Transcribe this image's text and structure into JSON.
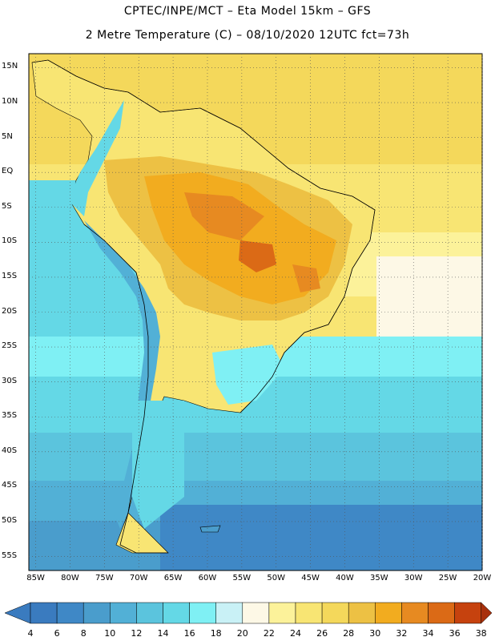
{
  "header": {
    "line1": "CPTEC/INPE/MCT –   Eta Model 15km – GFS",
    "line2": "2 Metre Temperature (C) – 08/10/2020 12UTC fct=73h"
  },
  "map": {
    "lat_labels": [
      "15N",
      "10N",
      "5N",
      "EQ",
      "5S",
      "10S",
      "15S",
      "20S",
      "25S",
      "30S",
      "35S",
      "40S",
      "45S",
      "50S",
      "55S"
    ],
    "lon_labels": [
      "85W",
      "80W",
      "75W",
      "70W",
      "65W",
      "60W",
      "55W",
      "50W",
      "45W",
      "40W",
      "35W",
      "30W",
      "25W",
      "20W"
    ],
    "grid": "dotted",
    "lat_range": [
      -57,
      17
    ],
    "lon_range": [
      -86,
      -20
    ]
  },
  "colorbar": {
    "labels": [
      "4",
      "6",
      "8",
      "10",
      "12",
      "14",
      "16",
      "18",
      "20",
      "22",
      "24",
      "26",
      "28",
      "30",
      "32",
      "34",
      "36",
      "38"
    ],
    "colors": {
      "below_4": "#3a7bbf",
      "4_6": "#3a7bbf",
      "6_8": "#3f88c6",
      "8_10": "#4a9dcc",
      "10_12": "#52b0d6",
      "12_14": "#5bc4dd",
      "14_16": "#64d8e6",
      "16_18": "#7ff0f4",
      "18_20": "#c9f1f6",
      "20_22": "#fdf8e6",
      "22_24": "#fcf29a",
      "24_26": "#f8e573",
      "26_28": "#f4d85b",
      "28_30": "#edc144",
      "30_32": "#f2ac1f",
      "32_34": "#e78a21",
      "34_36": "#db6a16",
      "36_38": "#c6420e",
      "above_38": "#a8300c"
    }
  }
}
